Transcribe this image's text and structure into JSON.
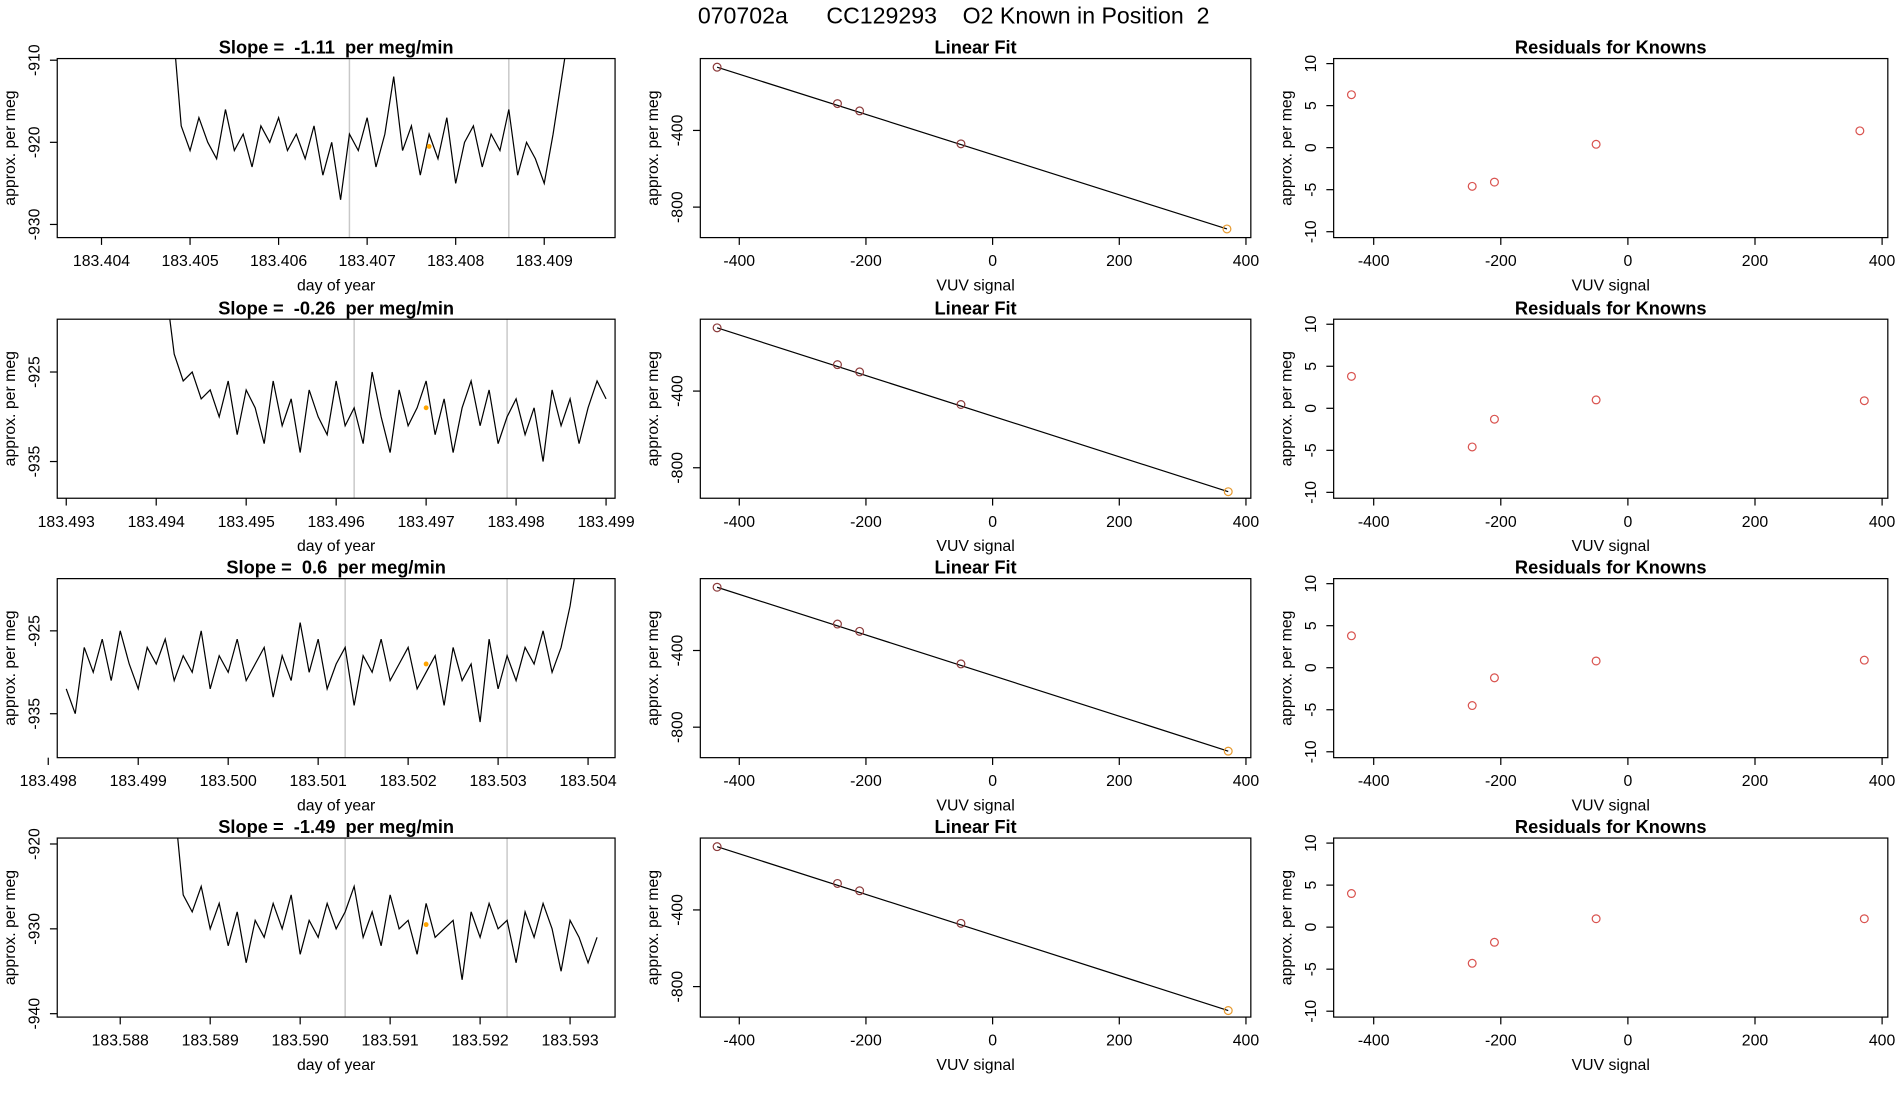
{
  "title": "070702a      CC129293    O2 Known in Position  2",
  "chart_data": [
    {
      "type": "line",
      "title": "Slope =  -1.11  per meg/min",
      "xlabel": "day of year",
      "ylabel": "approx. per meg",
      "xlim": [
        183.4035,
        183.4098
      ],
      "ylim": [
        -931.6,
        -909.8
      ],
      "xticks": [
        183.404,
        183.405,
        183.406,
        183.407,
        183.408,
        183.409
      ],
      "yticks": [
        -910,
        -920,
        -930
      ],
      "vlines": [
        183.4068,
        183.4086
      ],
      "color": "#000000",
      "marker": {
        "x": 183.4077,
        "y": -920.5,
        "color": "#ffa500"
      },
      "x": [
        183.4048,
        183.4049,
        183.405,
        183.4051,
        183.4052,
        183.4053,
        183.4054,
        183.4055,
        183.4056,
        183.4057,
        183.4058,
        183.4059,
        183.406,
        183.4061,
        183.4062,
        183.4063,
        183.4064,
        183.4065,
        183.4066,
        183.4067,
        183.4068,
        183.4069,
        183.407,
        183.4071,
        183.4072,
        183.4073,
        183.4074,
        183.4075,
        183.4076,
        183.4077,
        183.4078,
        183.4079,
        183.408,
        183.4081,
        183.4082,
        183.4083,
        183.4084,
        183.4085,
        183.4086,
        183.4087,
        183.4088,
        183.4089,
        183.409,
        183.4091,
        183.4092,
        183.4093
      ],
      "values": [
        -905,
        -918,
        -921,
        -917,
        -920,
        -922,
        -916,
        -921,
        -919,
        -923,
        -918,
        -920,
        -917,
        -921,
        -919,
        -922,
        -918,
        -924,
        -920,
        -927,
        -919,
        -921,
        -917,
        -923,
        -919,
        -912,
        -921,
        -918,
        -924,
        -919,
        -922,
        -917,
        -925,
        -920,
        -918,
        -923,
        -919,
        -921,
        -916,
        -924,
        -920,
        -922,
        -925,
        -919,
        -912,
        -905
      ]
    },
    {
      "type": "scatter",
      "title": "Linear Fit",
      "xlabel": "VUV signal",
      "ylabel": "approx. per meg",
      "xlim": [
        -461.5,
        407.7
      ],
      "ylim": [
        -959,
        -25
      ],
      "xticks": [
        -400,
        -200,
        0,
        200,
        400
      ],
      "yticks": [
        -400,
        -800
      ],
      "x": [
        -435,
        -245,
        -210,
        -50,
        370
      ],
      "values": [
        -70,
        -260,
        -298,
        -470,
        -914
      ],
      "colors": [
        "#8b3a3a",
        "#8b3a3a",
        "#8b3a3a",
        "#8b3a3a",
        "#e69a30"
      ],
      "fit_line": {
        "x": [
          -435,
          370
        ],
        "values": [
          -70,
          -914
        ]
      }
    },
    {
      "type": "scatter",
      "title": "Residuals for Knowns",
      "xlabel": "VUV signal",
      "ylabel": "approx. per meg",
      "xlim": [
        -463,
        409
      ],
      "ylim": [
        -10.7,
        10.6
      ],
      "xticks": [
        -400,
        -200,
        0,
        200,
        400
      ],
      "yticks": [
        -10,
        -5,
        0,
        5,
        10
      ],
      "x": [
        -435,
        -245,
        -210,
        -50,
        365
      ],
      "values": [
        6.3,
        -4.6,
        -4.1,
        0.4,
        2.0
      ],
      "color": "#d9534f"
    },
    {
      "type": "line",
      "title": "Slope =  -0.26  per meg/min",
      "xlabel": "day of year",
      "ylabel": "approx. per meg",
      "xlim": [
        183.4929,
        183.4991
      ],
      "ylim": [
        -939.1,
        -919.1
      ],
      "xticks": [
        183.493,
        183.494,
        183.495,
        183.496,
        183.497,
        183.498,
        183.499
      ],
      "yticks": [
        -925,
        -935
      ],
      "vlines": [
        183.4962,
        183.4979
      ],
      "color": "#000000",
      "marker": {
        "x": 183.497,
        "y": -929,
        "color": "#ffa500"
      },
      "x": [
        183.4941,
        183.4942,
        183.4943,
        183.4944,
        183.4945,
        183.4946,
        183.4947,
        183.4948,
        183.4949,
        183.495,
        183.4951,
        183.4952,
        183.4953,
        183.4954,
        183.4955,
        183.4956,
        183.4957,
        183.4958,
        183.4959,
        183.496,
        183.4961,
        183.4962,
        183.4963,
        183.4964,
        183.4965,
        183.4966,
        183.4967,
        183.4968,
        183.4969,
        183.497,
        183.4971,
        183.4972,
        183.4973,
        183.4974,
        183.4975,
        183.4976,
        183.4977,
        183.4978,
        183.4979,
        183.498,
        183.4981,
        183.4982,
        183.4983,
        183.4984,
        183.4985,
        183.4986,
        183.4987,
        183.4988,
        183.4989,
        183.499
      ],
      "values": [
        -915,
        -923,
        -926,
        -925,
        -928,
        -927,
        -930,
        -926,
        -932,
        -927,
        -929,
        -933,
        -926,
        -931,
        -928,
        -934,
        -927,
        -930,
        -932,
        -926,
        -931,
        -929,
        -933,
        -925,
        -930,
        -934,
        -927,
        -931,
        -929,
        -926,
        -932,
        -928,
        -934,
        -929,
        -926,
        -931,
        -927,
        -933,
        -930,
        -928,
        -932,
        -929,
        -935,
        -927,
        -931,
        -928,
        -933,
        -929,
        -926,
        -928
      ]
    },
    {
      "type": "scatter",
      "title": "Linear Fit",
      "xlabel": "VUV signal",
      "ylabel": "approx. per meg",
      "xlim": [
        -461.5,
        407.7
      ],
      "ylim": [
        -959,
        -25
      ],
      "xticks": [
        -400,
        -200,
        0,
        200,
        400
      ],
      "yticks": [
        -400,
        -800
      ],
      "x": [
        -435,
        -245,
        -210,
        -50,
        372
      ],
      "values": [
        -70,
        -262,
        -300,
        -470,
        -925
      ],
      "colors": [
        "#8b3a3a",
        "#8b3a3a",
        "#8b3a3a",
        "#8b3a3a",
        "#e69a30"
      ],
      "fit_line": {
        "x": [
          -435,
          372
        ],
        "values": [
          -70,
          -925
        ]
      }
    },
    {
      "type": "scatter",
      "title": "Residuals for Knowns",
      "xlabel": "VUV signal",
      "ylabel": "approx. per meg",
      "xlim": [
        -463,
        409
      ],
      "ylim": [
        -10.7,
        10.6
      ],
      "xticks": [
        -400,
        -200,
        0,
        200,
        400
      ],
      "yticks": [
        -10,
        -5,
        0,
        5,
        10
      ],
      "x": [
        -435,
        -245,
        -210,
        -50,
        372
      ],
      "values": [
        3.8,
        -4.6,
        -1.3,
        1.0,
        0.9
      ],
      "color": "#d9534f"
    },
    {
      "type": "line",
      "title": "Slope =  0.6  per meg/min",
      "xlabel": "day of year",
      "ylabel": "approx. per meg",
      "xlim": [
        183.4981,
        183.5043
      ],
      "ylim": [
        -940.3,
        -918.7
      ],
      "xticks": [
        183.498,
        183.499,
        {
          "value": 183.5,
          "label": "183.500"
        },
        183.501,
        183.502,
        183.503,
        183.504
      ],
      "yticks": [
        -925,
        -935
      ],
      "vlines": [
        183.5013,
        183.5031
      ],
      "color": "#000000",
      "marker": {
        "x": 183.5022,
        "y": -929,
        "color": "#ffa500"
      },
      "x": [
        183.4982,
        183.4983,
        183.4984,
        183.4985,
        183.4986,
        183.4987,
        183.4988,
        183.4989,
        183.499,
        183.4991,
        183.4992,
        183.4993,
        183.4994,
        183.4995,
        183.4996,
        183.4997,
        183.4998,
        183.4999,
        183.5,
        183.5001,
        183.5002,
        183.5003,
        183.5004,
        183.5005,
        183.5006,
        183.5007,
        183.5008,
        183.5009,
        183.501,
        183.5011,
        183.5012,
        183.5013,
        183.5014,
        183.5015,
        183.5016,
        183.5017,
        183.5018,
        183.5019,
        183.502,
        183.5021,
        183.5022,
        183.5023,
        183.5024,
        183.5025,
        183.5026,
        183.5027,
        183.5028,
        183.5029,
        183.503,
        183.5031,
        183.5032,
        183.5033,
        183.5034,
        183.5035,
        183.5036,
        183.5037,
        183.5038,
        183.5039
      ],
      "values": [
        -932,
        -935,
        -927,
        -930,
        -926,
        -931,
        -925,
        -929,
        -932,
        -927,
        -929,
        -926,
        -931,
        -928,
        -930,
        -925,
        -932,
        -928,
        -930,
        -926,
        -931,
        -929,
        -927,
        -933,
        -928,
        -931,
        -924,
        -930,
        -926,
        -932,
        -929,
        -927,
        -934,
        -928,
        -930,
        -926,
        -931,
        -929,
        -927,
        -932,
        -930,
        -928,
        -934,
        -927,
        -931,
        -929,
        -936,
        -926,
        -932,
        -928,
        -931,
        -927,
        -929,
        -925,
        -930,
        -927,
        -922,
        -915
      ]
    },
    {
      "type": "scatter",
      "title": "Linear Fit",
      "xlabel": "VUV signal",
      "ylabel": "approx. per meg",
      "xlim": [
        -461.5,
        407.7
      ],
      "ylim": [
        -959,
        -25
      ],
      "xticks": [
        -400,
        -200,
        0,
        200,
        400
      ],
      "yticks": [
        -400,
        -800
      ],
      "x": [
        -435,
        -245,
        -210,
        -50,
        372
      ],
      "values": [
        -70,
        -262,
        -300,
        -470,
        -925
      ],
      "colors": [
        "#8b3a3a",
        "#8b3a3a",
        "#8b3a3a",
        "#8b3a3a",
        "#e69a30"
      ],
      "fit_line": {
        "x": [
          -435,
          372
        ],
        "values": [
          -70,
          -925
        ]
      }
    },
    {
      "type": "scatter",
      "title": "Residuals for Knowns",
      "xlabel": "VUV signal",
      "ylabel": "approx. per meg",
      "xlim": [
        -463,
        409
      ],
      "ylim": [
        -10.7,
        10.6
      ],
      "xticks": [
        -400,
        -200,
        0,
        200,
        400
      ],
      "yticks": [
        -10,
        -5,
        0,
        5,
        10
      ],
      "x": [
        -435,
        -245,
        -210,
        -50,
        372
      ],
      "values": [
        3.8,
        -4.5,
        -1.2,
        0.8,
        0.9
      ],
      "color": "#d9534f"
    },
    {
      "type": "line",
      "title": "Slope =  -1.49  per meg/min",
      "xlabel": "day of year",
      "ylabel": "approx. per meg",
      "xlim": [
        183.5873,
        183.5935
      ],
      "ylim": [
        -940.4,
        -919.3
      ],
      "xticks": [
        183.588,
        183.589,
        {
          "value": 183.59,
          "label": "183.590"
        },
        183.591,
        183.592,
        183.593
      ],
      "yticks": [
        -920,
        -930,
        -940
      ],
      "vlines": [
        183.5905,
        183.5923
      ],
      "color": "#000000",
      "marker": {
        "x": 183.5914,
        "y": -929.5,
        "color": "#ffa500"
      },
      "x": [
        183.5886,
        183.5887,
        183.5888,
        183.5889,
        183.589,
        183.5891,
        183.5892,
        183.5893,
        183.5894,
        183.5895,
        183.5896,
        183.5897,
        183.5898,
        183.5899,
        183.59,
        183.5901,
        183.5902,
        183.5903,
        183.5904,
        183.5905,
        183.5906,
        183.5907,
        183.5908,
        183.5909,
        183.591,
        183.5911,
        183.5912,
        183.5913,
        183.5914,
        183.5915,
        183.5916,
        183.5917,
        183.5918,
        183.5919,
        183.592,
        183.5921,
        183.5922,
        183.5923,
        183.5924,
        183.5925,
        183.5926,
        183.5927,
        183.5928,
        183.5929,
        183.593,
        183.5931,
        183.5932,
        183.5933
      ],
      "values": [
        -915,
        -926,
        -928,
        -925,
        -930,
        -927,
        -932,
        -928,
        -934,
        -929,
        -931,
        -927,
        -930,
        -926,
        -933,
        -929,
        -931,
        -927,
        -930,
        -928,
        -925,
        -931,
        -928,
        -932,
        -926,
        -930,
        -929,
        -933,
        -927,
        -931,
        -930,
        -929,
        -936,
        -928,
        -931,
        -927,
        -930,
        -929,
        -934,
        -928,
        -931,
        -927,
        -930,
        -935,
        -929,
        -931,
        -934,
        -931
      ]
    },
    {
      "type": "scatter",
      "title": "Linear Fit",
      "xlabel": "VUV signal",
      "ylabel": "approx. per meg",
      "xlim": [
        -461.5,
        407.7
      ],
      "ylim": [
        -959,
        -25
      ],
      "xticks": [
        -400,
        -200,
        0,
        200,
        400
      ],
      "yticks": [
        -400,
        -800
      ],
      "x": [
        -435,
        -245,
        -210,
        -50,
        372
      ],
      "values": [
        -70,
        -262,
        -300,
        -470,
        -925
      ],
      "colors": [
        "#8b3a3a",
        "#8b3a3a",
        "#8b3a3a",
        "#8b3a3a",
        "#e69a30"
      ],
      "fit_line": {
        "x": [
          -435,
          372
        ],
        "values": [
          -70,
          -925
        ]
      }
    },
    {
      "type": "scatter",
      "title": "Residuals for Knowns",
      "xlabel": "VUV signal",
      "ylabel": "approx. per meg",
      "xlim": [
        -463,
        409
      ],
      "ylim": [
        -10.7,
        10.6
      ],
      "xticks": [
        -400,
        -200,
        0,
        200,
        400
      ],
      "yticks": [
        -10,
        -5,
        0,
        5,
        10
      ],
      "x": [
        -435,
        -245,
        -210,
        -50,
        372
      ],
      "values": [
        4.0,
        -4.3,
        -1.8,
        1.0,
        1.0
      ],
      "color": "#d9534f"
    }
  ]
}
